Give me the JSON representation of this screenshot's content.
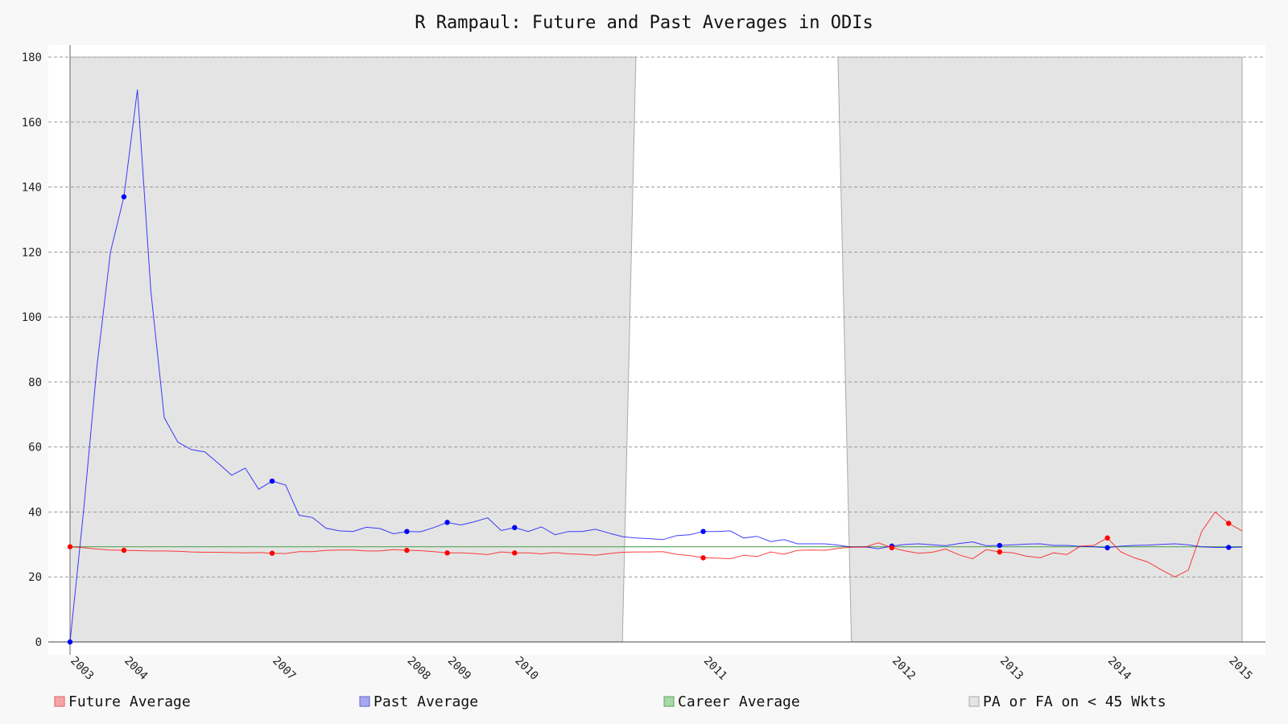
{
  "chart_data": {
    "type": "line",
    "title": "R Rampaul: Future and Past Averages in ODIs",
    "xlabel": "",
    "ylabel": "",
    "ylim": [
      0,
      180
    ],
    "yticks": [
      0,
      20,
      40,
      60,
      80,
      100,
      120,
      140,
      160,
      180
    ],
    "grid": true,
    "legend_placement": "bottom",
    "x_tick_labels": [
      {
        "index": 0,
        "label": "2003"
      },
      {
        "index": 4,
        "label": "2004"
      },
      {
        "index": 15,
        "label": "2007"
      },
      {
        "index": 25,
        "label": "2008"
      },
      {
        "index": 28,
        "label": "2009"
      },
      {
        "index": 33,
        "label": "2010"
      },
      {
        "index": 47,
        "label": "2011"
      },
      {
        "index": 61,
        "label": "2012"
      },
      {
        "index": 69,
        "label": "2013"
      },
      {
        "index": 77,
        "label": "2014"
      },
      {
        "index": 86,
        "label": "2015"
      }
    ],
    "shaded_regions": [
      {
        "from_index": 0,
        "to_index": 41,
        "top_to_index": 42
      },
      {
        "from_index": 58,
        "to_index": 87,
        "top_from_index": 57
      }
    ],
    "career_average": 29.3,
    "series": [
      {
        "name": "Future Average",
        "color": "#ff0000",
        "values": [
          29.3,
          29.0,
          28.6,
          28.3,
          28.2,
          28.1,
          28.0,
          28.0,
          27.9,
          27.7,
          27.6,
          27.6,
          27.5,
          27.4,
          27.5,
          27.3,
          27.2,
          27.8,
          27.8,
          28.2,
          28.3,
          28.3,
          28.0,
          28.0,
          28.4,
          28.2,
          28.1,
          27.8,
          27.4,
          27.4,
          27.2,
          26.9,
          27.7,
          27.4,
          27.4,
          27.1,
          27.5,
          27.1,
          27.0,
          26.7,
          27.2,
          27.6,
          27.7,
          27.7,
          27.8,
          27.0,
          26.6,
          25.9,
          25.8,
          25.6,
          26.7,
          26.3,
          27.7,
          27.0,
          28.2,
          28.3,
          28.2,
          28.8,
          29.2,
          29.2,
          30.5,
          29.0,
          28.0,
          27.3,
          27.6,
          28.6,
          26.8,
          25.6,
          28.4,
          27.7,
          27.4,
          26.4,
          25.9,
          27.4,
          26.9,
          29.5,
          29.7,
          32.0,
          27.7,
          25.9,
          24.6,
          22.2,
          20.0,
          22.1,
          34.0,
          40.0,
          36.5,
          34.2
        ],
        "markers": [
          0,
          4,
          15,
          25,
          28,
          33,
          47,
          61,
          69,
          77,
          86
        ]
      },
      {
        "name": "Past Average",
        "color": "#0000ff",
        "values": [
          0.0,
          40.0,
          85.0,
          120.0,
          137.0,
          170.0,
          108.0,
          69.0,
          61.5,
          59.2,
          58.5,
          55.0,
          51.3,
          53.5,
          47.0,
          49.5,
          48.3,
          39.0,
          38.3,
          35.0,
          34.2,
          34.0,
          35.3,
          34.9,
          33.3,
          34.0,
          33.9,
          35.2,
          36.8,
          36.0,
          37.0,
          38.2,
          34.3,
          35.2,
          34.0,
          35.4,
          33.0,
          34.0,
          34.0,
          34.7,
          33.5,
          32.4,
          32.0,
          31.8,
          31.5,
          32.7,
          33.0,
          34.0,
          34.0,
          34.2,
          32.0,
          32.5,
          30.9,
          31.5,
          30.2,
          30.2,
          30.2,
          29.8,
          29.2,
          29.3,
          28.7,
          29.5,
          30.0,
          30.2,
          29.9,
          29.6,
          30.3,
          30.8,
          29.6,
          29.7,
          29.9,
          30.1,
          30.2,
          29.7,
          29.7,
          29.4,
          29.3,
          29.0,
          29.5,
          29.7,
          29.8,
          30.0,
          30.2,
          29.9,
          29.3,
          29.1,
          29.1,
          29.2
        ],
        "markers": [
          0,
          4,
          15,
          25,
          28,
          33,
          47,
          61,
          69,
          77,
          86
        ]
      }
    ]
  },
  "legend": [
    {
      "label": "Future Average",
      "swatch_fill": "#f4a6a6",
      "swatch_stroke": "#e06060"
    },
    {
      "label": "Past Average",
      "swatch_fill": "#a8a8f0",
      "swatch_stroke": "#6060d0"
    },
    {
      "label": "Career Average",
      "swatch_fill": "#a8d8a8",
      "swatch_stroke": "#60a060"
    },
    {
      "label": "PA or FA on < 45 Wkts",
      "swatch_fill": "#e4e4e4",
      "swatch_stroke": "#aaaaaa"
    }
  ],
  "colors": {
    "shade": "#e4e4e4",
    "career_line": "#66aa66",
    "grid": "#999999"
  }
}
